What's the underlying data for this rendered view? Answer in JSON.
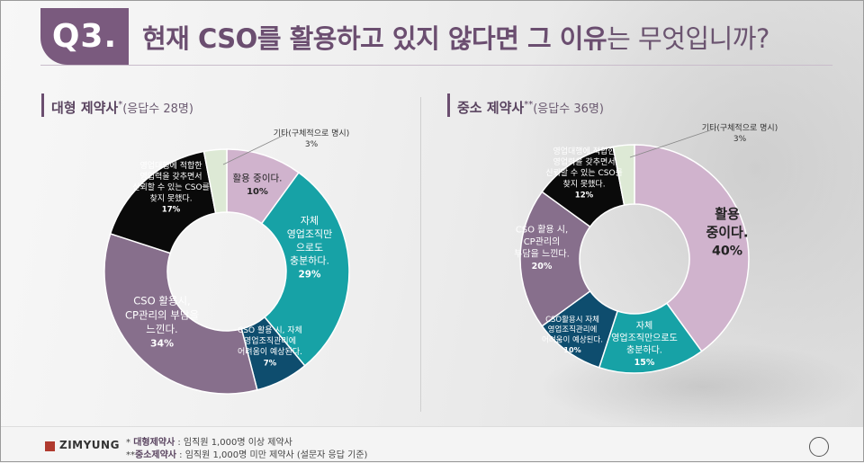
{
  "header": {
    "badge": "Q3.",
    "title_strong": "현재 CSO를 활용하고 있지 않다면 그 이유",
    "title_light": "는 무엇입니까?"
  },
  "colors": {
    "accent": "#7a5a7e",
    "using": "#d0b3cd",
    "internal_possible": "#17a2a6",
    "internal_difficult": "#0e4d6e",
    "cp_burden": "#876f8c",
    "no_suitable_cso": "#0a0a0a",
    "other": "#dde9d5"
  },
  "chart_data": [
    {
      "type": "pie",
      "title": "대형 제약사",
      "title_mark": "*",
      "respondents": "(응답수 28명)",
      "slices": [
        {
          "label": "활용 중이다.",
          "value": 10,
          "pct_label": "10%"
        },
        {
          "label": "자체 영업조직만으로도 충분하다.",
          "value": 29,
          "pct_label": "29%"
        },
        {
          "label": "CSO 활용 시, 자체 영업조직관리에 어려움이 예상된다.",
          "value": 7,
          "pct_label": "7%"
        },
        {
          "label": "CSO 활용시, CP관리의 부담을 느낀다.",
          "value": 34,
          "pct_label": "34%"
        },
        {
          "label": "영업대행에 적합한 영업력을 갖추면서 신뢰할 수 있는 CSO를 찾지 못했다.",
          "value": 17,
          "pct_label": "17%"
        },
        {
          "label": "기타(구체적으로 명시)",
          "value": 3,
          "pct_label": "3%"
        }
      ]
    },
    {
      "type": "pie",
      "title": "중소 제약사",
      "title_mark": "**",
      "respondents": "(응답수 36명)",
      "slices": [
        {
          "label": "활용 중이다.",
          "value": 40,
          "pct_label": "40%"
        },
        {
          "label": "자체 영업조직만으로도 충분하다.",
          "value": 15,
          "pct_label": "15%"
        },
        {
          "label": "CSO활용시 자체 영업조직관리에 어려움이 예상된다.",
          "value": 10,
          "pct_label": "10%"
        },
        {
          "label": "CSO 활용 시, CP관리의 부담을 느낀다.",
          "value": 20,
          "pct_label": "20%"
        },
        {
          "label": "영업대행에 적합한 영업력을 갖추면서 신뢰할 수 있는 CSO를 찾지 못했다.",
          "value": 12,
          "pct_label": "12%"
        },
        {
          "label": "기타(구체적으로 명시)",
          "value": 3,
          "pct_label": "3%"
        }
      ]
    }
  ],
  "footer": {
    "logo": "ZIMYUNG",
    "note1_mark": "*",
    "note1_label": "대형제약사",
    "note1_text": " : 임직원 1,000명 이상 제약사",
    "note2_mark": "**",
    "note2_label": "중소제약사",
    "note2_text": " : 임직원 1,000명 미만 제약사 (설문자 응답 기준)"
  }
}
